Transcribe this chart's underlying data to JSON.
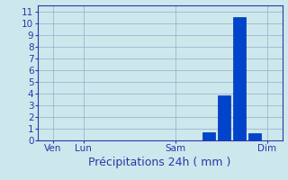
{
  "xlabel": "Précipitations 24h ( mm )",
  "background_color": "#cce8ec",
  "plot_bg_color": "#cce8ec",
  "bar_color": "#0044cc",
  "bar_edge_color": "#0033aa",
  "grid_color": "#99aacc",
  "axis_color": "#3333aa",
  "tick_color": "#3333aa",
  "label_color": "#3333aa",
  "ylim": [
    0,
    11.5
  ],
  "yticks": [
    0,
    1,
    2,
    3,
    4,
    5,
    6,
    7,
    8,
    9,
    10,
    11
  ],
  "n_days": 8,
  "x_tick_positions": [
    0.5,
    1.5,
    4.5,
    7.5
  ],
  "x_tick_labels": [
    "Ven",
    "Lun",
    "Sam",
    "Dim"
  ],
  "xlim": [
    0,
    8
  ],
  "bars": [
    {
      "x": 5.6,
      "height": 0.7
    },
    {
      "x": 6.1,
      "height": 3.8
    },
    {
      "x": 6.6,
      "height": 10.5
    },
    {
      "x": 7.1,
      "height": 0.6
    }
  ],
  "bar_width": 0.4,
  "xlabel_fontsize": 9,
  "tick_fontsize": 7.5
}
